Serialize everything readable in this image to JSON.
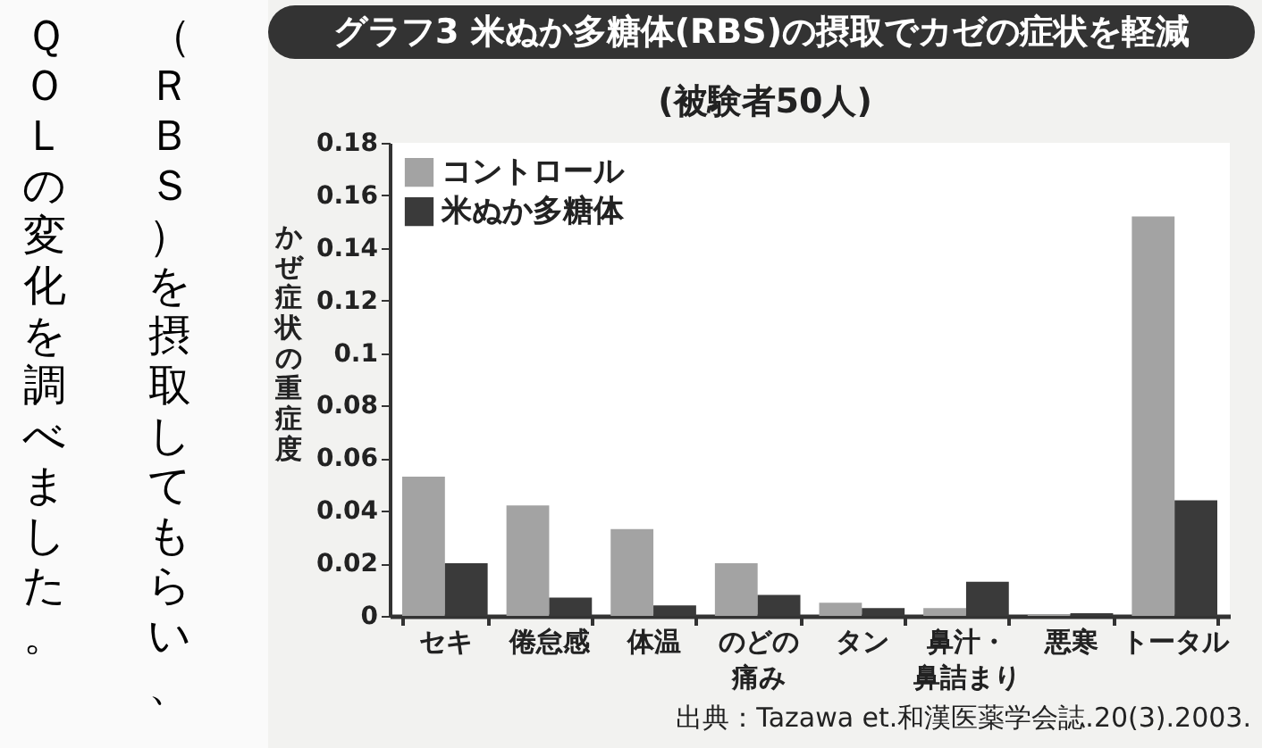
{
  "chart_data": {
    "type": "bar",
    "title": "グラフ3 米ぬか多糖体(RBS)の摂取でカゼの症状を軽減",
    "subtitle": "(被験者50人)",
    "ylabel": "かぜ症状の重症度",
    "annotations": [
      "（ＲＢＳ）を摂取してもらい、",
      "ＱＯＬの変化を調べました。",
      "出典：Tazawa et.和漢医薬学会誌.20(3).2003."
    ],
    "categories": [
      "セキ",
      "倦怠感",
      "体温",
      "のどの痛み",
      "タン",
      "鼻汁・鼻詰まり",
      "悪寒",
      "トータル"
    ],
    "series": [
      {
        "name": "コントロール",
        "color": "#a3a3a3",
        "values": [
          0.053,
          0.042,
          0.033,
          0.02,
          0.005,
          0.003,
          0.0005,
          0.152
        ]
      },
      {
        "name": "米ぬか多糖体",
        "color": "#3a3a3a",
        "values": [
          0.02,
          0.007,
          0.004,
          0.008,
          0.003,
          0.013,
          0.001,
          0.044
        ]
      }
    ],
    "ylim": [
      0,
      0.18
    ],
    "yticks": [
      0,
      0.02,
      0.04,
      0.06,
      0.08,
      0.1,
      0.12,
      0.14,
      0.16,
      0.18
    ],
    "grid": false,
    "legend": "top left"
  }
}
